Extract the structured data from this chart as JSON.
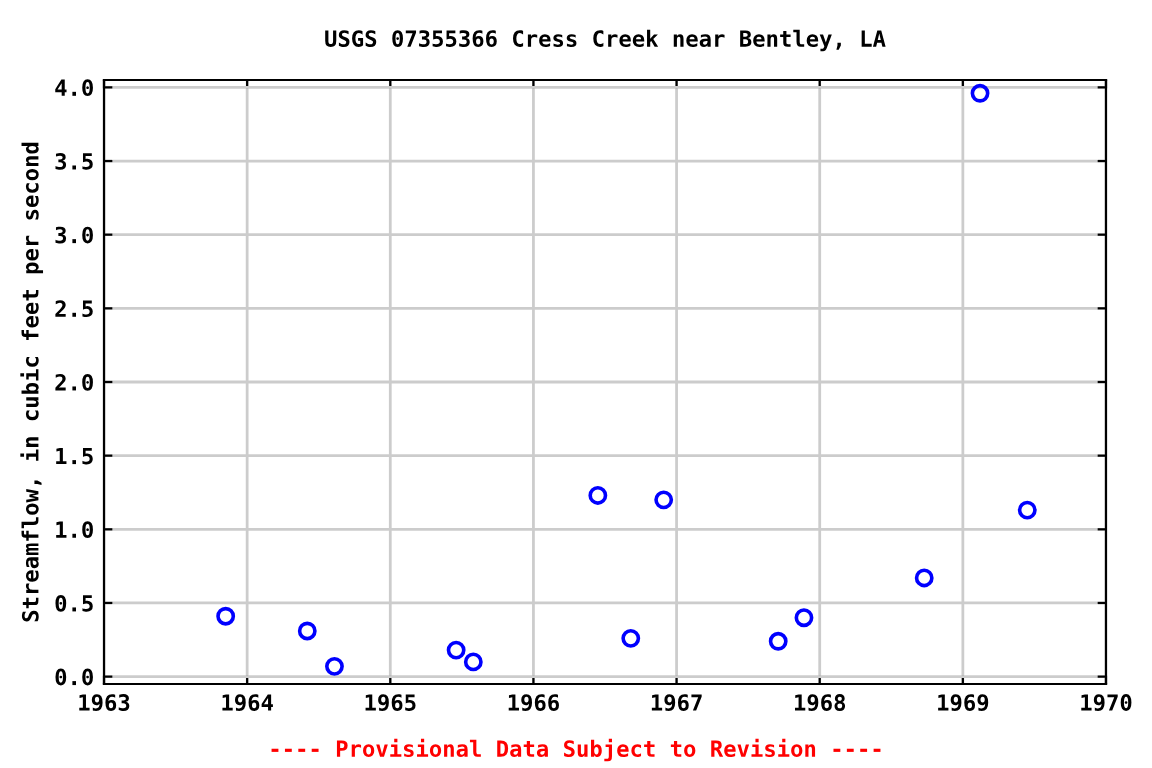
{
  "chart_data": {
    "type": "scatter",
    "title": "USGS 07355366 Cress Creek near Bentley, LA",
    "ylabel": "Streamflow, in cubic feet per second",
    "x": [
      1963.85,
      1964.42,
      1964.61,
      1965.46,
      1965.58,
      1966.45,
      1966.68,
      1966.91,
      1967.71,
      1967.89,
      1968.73,
      1969.12,
      1969.45
    ],
    "series": [
      {
        "color": "#0000ff",
        "values": [
          0.41,
          0.31,
          0.07,
          0.18,
          0.1,
          1.23,
          0.26,
          1.2,
          0.24,
          0.4,
          0.67,
          3.96,
          1.13
        ]
      }
    ],
    "xlim": [
      1963,
      1970
    ],
    "xticks": [
      1963,
      1964,
      1965,
      1966,
      1967,
      1968,
      1969,
      1970
    ],
    "ylim": [
      -0.05,
      4.05
    ],
    "yticks": [
      {
        "value": 0,
        "label": "0.0"
      },
      {
        "value": 0.5,
        "label": "0.5"
      },
      {
        "value": 1,
        "label": "1.0"
      },
      {
        "value": 1.5,
        "label": "1.5"
      },
      {
        "value": 2,
        "label": "2.0"
      },
      {
        "value": 2.5,
        "label": "2.5"
      },
      {
        "value": 3,
        "label": "3.0"
      },
      {
        "value": 3.5,
        "label": "3.5"
      },
      {
        "value": 4,
        "label": "4.0"
      }
    ],
    "grid": true,
    "marker": "circle",
    "legend": false,
    "annotations": [
      "---- Provisional Data Subject to Revision ----"
    ]
  }
}
